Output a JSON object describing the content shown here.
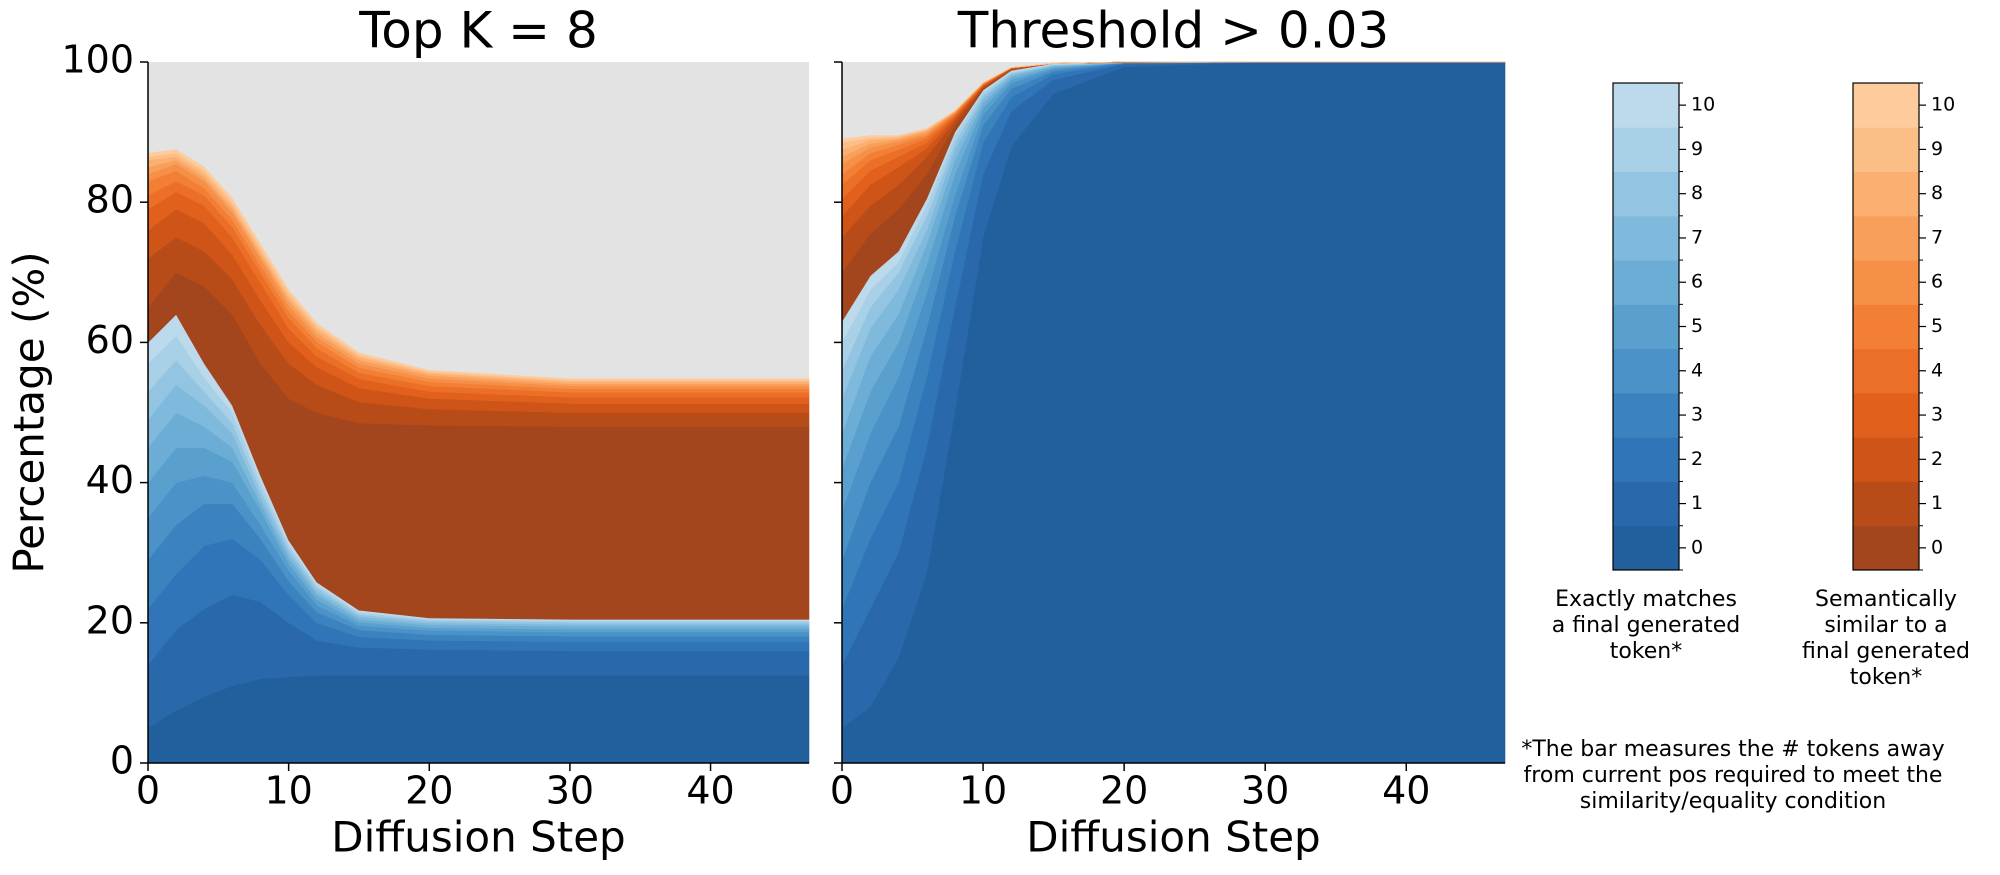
{
  "chart_data": [
    {
      "type": "stacked_area",
      "title": "Top K = 8",
      "xlabel": "Diffusion Step",
      "ylabel": "Percentage (%)",
      "x": [
        0,
        2,
        4,
        6,
        8,
        10,
        12,
        15,
        20,
        30,
        47
      ],
      "xlim": [
        0,
        47
      ],
      "ylim": [
        0,
        100
      ],
      "xticks": [
        0,
        10,
        20,
        30,
        40
      ],
      "yticks": [
        0,
        20,
        40,
        60,
        80,
        100
      ],
      "show_ytick_labels": true,
      "background": "#e3e3e3",
      "series": [
        {
          "color": "#225f9d",
          "values": [
            5,
            7.5,
            9.5,
            11,
            12,
            12.3,
            12.5,
            12.5,
            12.5,
            12.5,
            12.5
          ]
        },
        {
          "color": "#2868ab",
          "values": [
            9,
            11.5,
            12.5,
            13,
            11,
            7.7,
            5,
            4,
            3.7,
            3.5,
            3.5
          ]
        },
        {
          "color": "#3075b7",
          "values": [
            8,
            8,
            9,
            8,
            6,
            4,
            2.5,
            1.5,
            1.3,
            1.3,
            1.3
          ]
        },
        {
          "color": "#3b83bf",
          "values": [
            7,
            7,
            6,
            5,
            3,
            2,
            1.5,
            1,
            0.8,
            0.8,
            0.8
          ]
        },
        {
          "color": "#4a92c7",
          "values": [
            6,
            6,
            4,
            3,
            2,
            1.5,
            1,
            0.6,
            0.6,
            0.6,
            0.6
          ]
        },
        {
          "color": "#5aa0ce",
          "values": [
            5,
            5,
            4,
            3,
            2,
            1,
            0.8,
            0.5,
            0.4,
            0.4,
            0.4
          ]
        },
        {
          "color": "#6cadd5",
          "values": [
            5,
            5,
            3,
            2,
            1,
            0.8,
            0.7,
            0.4,
            0.4,
            0.4,
            0.4
          ]
        },
        {
          "color": "#7fb9dc",
          "values": [
            4,
            4,
            3,
            2,
            1,
            0.7,
            0.5,
            0.4,
            0.3,
            0.3,
            0.3
          ]
        },
        {
          "color": "#93c5e2",
          "values": [
            4,
            3.5,
            2,
            1.5,
            1,
            0.6,
            0.5,
            0.3,
            0.3,
            0.3,
            0.3
          ]
        },
        {
          "color": "#a8d0e7",
          "values": [
            4,
            3.5,
            2,
            1.5,
            1,
            0.6,
            0.4,
            0.3,
            0.2,
            0.2,
            0.2
          ]
        },
        {
          "color": "#bdd9ec",
          "values": [
            3,
            3,
            2,
            1,
            1,
            0.6,
            0.4,
            0.3,
            0.2,
            0.2,
            0.2
          ]
        },
        {
          "color": "#a3461e",
          "values": [
            5,
            6,
            11,
            13,
            16,
            20.2,
            24.2,
            26.7,
            27.5,
            27.5,
            27.5
          ]
        },
        {
          "color": "#b84c18",
          "values": [
            7,
            5,
            5,
            5,
            5.5,
            5,
            4,
            3,
            2.3,
            2,
            2
          ]
        },
        {
          "color": "#cf5418",
          "values": [
            4,
            4,
            4,
            3.5,
            3.5,
            3,
            2.5,
            2,
            1.5,
            1.3,
            1.3
          ]
        },
        {
          "color": "#e1601c",
          "values": [
            3,
            2.5,
            2.5,
            2.5,
            2.5,
            2,
            1.5,
            1.3,
            1,
            0.9,
            0.9
          ]
        },
        {
          "color": "#ec6f28",
          "values": [
            2,
            1.5,
            1.5,
            1.5,
            1.5,
            1.5,
            1.2,
            0.9,
            0.8,
            0.7,
            0.7
          ]
        },
        {
          "color": "#f37f35",
          "values": [
            2,
            1.5,
            1,
            1,
            1,
            1,
            0.9,
            0.7,
            0.6,
            0.5,
            0.5
          ]
        },
        {
          "color": "#f68f48",
          "values": [
            1,
            1,
            1,
            1,
            1,
            0.8,
            0.7,
            0.6,
            0.5,
            0.4,
            0.4
          ]
        },
        {
          "color": "#f99f5c",
          "values": [
            1,
            0.5,
            0.5,
            0.5,
            0.5,
            0.7,
            0.6,
            0.5,
            0.4,
            0.3,
            0.3
          ]
        },
        {
          "color": "#fbaf71",
          "values": [
            1,
            0.5,
            0.5,
            0.5,
            0.5,
            0.5,
            0.5,
            0.4,
            0.3,
            0.3,
            0.3
          ]
        },
        {
          "color": "#fcbe87",
          "values": [
            0.5,
            0.5,
            0.5,
            0.5,
            0.5,
            0.5,
            0.4,
            0.3,
            0.2,
            0.2,
            0.2
          ]
        },
        {
          "color": "#fdcb9c",
          "values": [
            0.5,
            0.5,
            0.5,
            0.5,
            0.5,
            0.5,
            0.4,
            0.3,
            0.2,
            0.2,
            0.2
          ]
        }
      ]
    },
    {
      "type": "stacked_area",
      "title": "Threshold > 0.03",
      "xlabel": "Diffusion Step",
      "x": [
        0,
        2,
        4,
        6,
        8,
        10,
        12,
        15,
        20,
        30,
        47
      ],
      "xlim": [
        0,
        47
      ],
      "ylim": [
        0,
        100
      ],
      "xticks": [
        0,
        10,
        20,
        30,
        40
      ],
      "yticks": [
        0,
        20,
        40,
        60,
        80,
        100
      ],
      "show_ytick_labels": false,
      "background": "#e3e3e3",
      "series": [
        {
          "color": "#225f9d",
          "values": [
            5,
            8,
            15,
            27,
            50,
            75,
            88,
            95.5,
            99.3,
            100,
            100
          ]
        },
        {
          "color": "#2868ab",
          "values": [
            9,
            14,
            15,
            18,
            15,
            9,
            5,
            2,
            0.4,
            0,
            0
          ]
        },
        {
          "color": "#3075b7",
          "values": [
            8,
            10,
            10,
            10,
            8,
            4.5,
            2,
            0.8,
            0.1,
            0,
            0
          ]
        },
        {
          "color": "#3b83bf",
          "values": [
            7,
            8,
            8,
            7,
            5,
            2.5,
            1.2,
            0.4,
            0.1,
            0,
            0
          ]
        },
        {
          "color": "#4a92c7",
          "values": [
            7,
            7,
            7,
            5,
            3,
            1.5,
            0.8,
            0.3,
            0,
            0,
            0
          ]
        },
        {
          "color": "#5aa0ce",
          "values": [
            6,
            6,
            5,
            4,
            3,
            1,
            0.5,
            0.2,
            0,
            0,
            0
          ]
        },
        {
          "color": "#6cadd5",
          "values": [
            5,
            5,
            4,
            3,
            2,
            0.7,
            0.4,
            0.2,
            0,
            0,
            0
          ]
        },
        {
          "color": "#7fb9dc",
          "values": [
            5,
            4,
            3.5,
            2,
            1.5,
            0.6,
            0.3,
            0.1,
            0,
            0,
            0
          ]
        },
        {
          "color": "#93c5e2",
          "values": [
            4,
            3,
            2.5,
            2,
            1,
            0.5,
            0.2,
            0.1,
            0,
            0,
            0
          ]
        },
        {
          "color": "#a8d0e7",
          "values": [
            4,
            2.5,
            1.5,
            1.5,
            1,
            0.4,
            0.2,
            0.1,
            0,
            0,
            0
          ]
        },
        {
          "color": "#bdd9ec",
          "values": [
            3,
            2,
            1.5,
            1,
            0.5,
            0.3,
            0.2,
            0.1,
            0,
            0,
            0
          ]
        },
        {
          "color": "#a3461e",
          "values": [
            7,
            6,
            6,
            3.5,
            1,
            0.3,
            0.1,
            0,
            0.1,
            0,
            0
          ]
        },
        {
          "color": "#b84c18",
          "values": [
            5,
            4,
            3.5,
            2.5,
            0.6,
            0.2,
            0.1,
            0,
            0,
            0,
            0
          ]
        },
        {
          "color": "#cf5418",
          "values": [
            3,
            3,
            2.5,
            1.2,
            0.4,
            0.1,
            0.1,
            0,
            0,
            0,
            0
          ]
        },
        {
          "color": "#e1601c",
          "values": [
            2.5,
            2,
            1.5,
            0.8,
            0.3,
            0.1,
            0.1,
            0,
            0,
            0,
            0
          ]
        },
        {
          "color": "#ec6f28",
          "values": [
            2,
            1.5,
            1,
            0.6,
            0.2,
            0.1,
            0,
            0,
            0,
            0,
            0
          ]
        },
        {
          "color": "#f37f35",
          "values": [
            1.5,
            1,
            0.7,
            0.4,
            0.2,
            0.1,
            0,
            0,
            0,
            0,
            0
          ]
        },
        {
          "color": "#f68f48",
          "values": [
            1.5,
            0.8,
            0.5,
            0.3,
            0.1,
            0.1,
            0,
            0,
            0,
            0,
            0
          ]
        },
        {
          "color": "#f99f5c",
          "values": [
            1,
            0.6,
            0.3,
            0.3,
            0.1,
            0,
            0,
            0,
            0,
            0,
            0
          ]
        },
        {
          "color": "#fbaf71",
          "values": [
            1,
            0.5,
            0.2,
            0.2,
            0.1,
            0,
            0,
            0,
            0,
            0,
            0
          ]
        },
        {
          "color": "#fcbe87",
          "values": [
            1,
            0.3,
            0.2,
            0.1,
            0,
            0,
            0,
            0,
            0,
            0,
            0
          ]
        },
        {
          "color": "#fdcb9c",
          "values": [
            0.5,
            0.3,
            0.1,
            0.1,
            0,
            0,
            0,
            0,
            0,
            0,
            0
          ]
        }
      ]
    }
  ],
  "colorbars": [
    {
      "label": [
        "Exactly matches",
        "a final generated",
        "token*"
      ],
      "ticks": [
        0,
        1,
        2,
        3,
        4,
        5,
        6,
        7,
        8,
        9,
        10
      ],
      "colors": [
        "#225f9d",
        "#2868ab",
        "#3075b7",
        "#3b83bf",
        "#4a92c7",
        "#5aa0ce",
        "#6cadd5",
        "#7fb9dc",
        "#93c5e2",
        "#a8d0e7",
        "#bdd9ec"
      ]
    },
    {
      "label": [
        "Semantically",
        "similar to a",
        "final generated",
        "token*"
      ],
      "ticks": [
        0,
        1,
        2,
        3,
        4,
        5,
        6,
        7,
        8,
        9,
        10
      ],
      "colors": [
        "#a3461e",
        "#b84c18",
        "#cf5418",
        "#e1601c",
        "#ec6f28",
        "#f37f35",
        "#f68f48",
        "#f99f5c",
        "#fbaf71",
        "#fcbe87",
        "#fdcb9c"
      ]
    }
  ],
  "footnote": [
    "*The bar measures the # tokens away",
    "from current pos required to meet the",
    "similarity/equality condition"
  ]
}
